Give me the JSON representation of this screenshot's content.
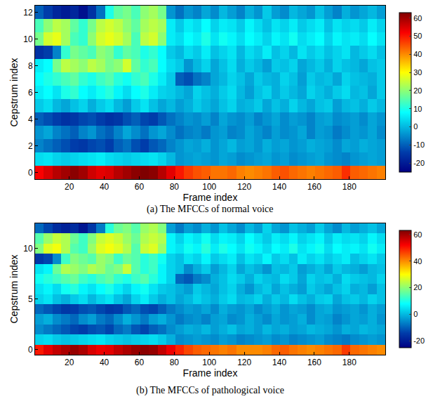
{
  "chart_data": [
    {
      "type": "heatmap",
      "title": "(a) The MFCCs of normal voice",
      "x_label": "Frame index",
      "y_label": "Cepstrum index",
      "color": "Jet",
      "x": [
        3,
        8,
        13,
        18,
        23,
        28,
        33,
        38,
        43,
        48,
        53,
        58,
        63,
        68,
        73,
        78,
        83,
        88,
        93,
        98,
        103,
        108,
        113,
        118,
        123,
        128,
        133,
        138,
        143,
        148,
        153,
        158,
        163,
        168,
        173,
        178,
        183,
        188,
        193,
        198
      ],
      "y": [
        0,
        1,
        2,
        3,
        4,
        5,
        6,
        7,
        8,
        9,
        10,
        11,
        12
      ],
      "z": [
        [
          52,
          55,
          58,
          60,
          62,
          60,
          56,
          54,
          55,
          58,
          60,
          62,
          63,
          62,
          58,
          54,
          50,
          47,
          45,
          44,
          42,
          42,
          43,
          41,
          40,
          41,
          42,
          44,
          45,
          43,
          42,
          41,
          42,
          43,
          44,
          48,
          44,
          43,
          42,
          41
        ],
        [
          4,
          5,
          3,
          2,
          3,
          4,
          5,
          6,
          4,
          3,
          2,
          3,
          4,
          5,
          3,
          0,
          -4,
          -3,
          -2,
          -3,
          -4,
          -2,
          -3,
          -5,
          -4,
          -3,
          -2,
          -4,
          -3,
          -5,
          -4,
          -3,
          -2,
          -4,
          -5,
          -6,
          -4,
          -3,
          -2,
          -3
        ],
        [
          -6,
          -8,
          -10,
          -12,
          -14,
          -15,
          -13,
          -12,
          -14,
          -10,
          -8,
          -12,
          -14,
          -11,
          -9,
          -6,
          -4,
          -2,
          -3,
          -1,
          -4,
          -2,
          0,
          -3,
          -2,
          -4,
          -1,
          -3,
          -2,
          -4,
          -3,
          -1,
          -2,
          -3,
          -5,
          -2,
          -3,
          -1,
          -2,
          -3
        ],
        [
          -4,
          -2,
          -6,
          -8,
          -10,
          -6,
          -4,
          -8,
          -10,
          -6,
          -2,
          -5,
          -8,
          -4,
          -2,
          -5,
          -8,
          -6,
          -5,
          -7,
          -4,
          -3,
          -6,
          -5,
          -2,
          -4,
          -6,
          -3,
          -5,
          -4,
          -2,
          -6,
          -3,
          -4,
          -7,
          -5,
          -3,
          -4,
          -2,
          -5
        ],
        [
          -10,
          -12,
          -14,
          -16,
          -15,
          -13,
          -12,
          -14,
          -16,
          -15,
          -12,
          -10,
          -13,
          -14,
          -11,
          -8,
          -6,
          -4,
          -5,
          -3,
          -6,
          -2,
          -4,
          -5,
          -3,
          -6,
          -4,
          -2,
          -5,
          -3,
          -4,
          -6,
          -3,
          -2,
          -5,
          -4,
          -3,
          -5,
          -2,
          -4
        ],
        [
          2,
          4,
          0,
          -2,
          1,
          3,
          -1,
          2,
          4,
          0,
          -3,
          2,
          5,
          1,
          -2,
          0,
          -3,
          -1,
          2,
          0,
          -2,
          1,
          3,
          -1,
          0,
          2,
          -2,
          1,
          -1,
          3,
          0,
          -2,
          1,
          2,
          -3,
          0,
          1,
          -1,
          2,
          0
        ],
        [
          6,
          8,
          5,
          10,
          12,
          8,
          6,
          9,
          11,
          7,
          4,
          8,
          10,
          6,
          3,
          2,
          0,
          -2,
          3,
          1,
          -1,
          2,
          4,
          0,
          -3,
          1,
          3,
          -1,
          2,
          0,
          -2,
          3,
          1,
          -1,
          2,
          4,
          0,
          1,
          -2,
          2
        ],
        [
          8,
          10,
          12,
          14,
          16,
          12,
          10,
          13,
          15,
          11,
          9,
          12,
          14,
          10,
          6,
          2,
          -10,
          -12,
          -8,
          -6,
          -2,
          0,
          3,
          1,
          -2,
          2,
          0,
          -1,
          3,
          1,
          -3,
          2,
          0,
          1,
          -2,
          3,
          1,
          0,
          -1,
          2
        ],
        [
          6,
          8,
          18,
          24,
          22,
          20,
          24,
          22,
          18,
          20,
          26,
          16,
          12,
          14,
          8,
          4,
          2,
          -4,
          0,
          3,
          -2,
          1,
          4,
          -1,
          2,
          0,
          -3,
          2,
          1,
          3,
          -2,
          0,
          2,
          -1,
          3,
          1,
          0,
          -2,
          1,
          2
        ],
        [
          -16,
          -14,
          -6,
          12,
          18,
          16,
          14,
          20,
          18,
          12,
          16,
          14,
          10,
          12,
          8,
          2,
          0,
          4,
          2,
          6,
          1,
          3,
          5,
          0,
          4,
          2,
          6,
          1,
          3,
          0,
          5,
          2,
          4,
          1,
          3,
          5,
          0,
          2,
          4,
          1
        ],
        [
          18,
          26,
          28,
          22,
          14,
          12,
          20,
          26,
          28,
          26,
          22,
          14,
          24,
          26,
          20,
          6,
          4,
          8,
          6,
          10,
          5,
          9,
          7,
          4,
          8,
          6,
          3,
          7,
          5,
          9,
          4,
          6,
          8,
          3,
          7,
          5,
          6,
          4,
          8,
          5
        ],
        [
          14,
          20,
          24,
          22,
          16,
          12,
          18,
          24,
          26,
          24,
          20,
          16,
          22,
          24,
          22,
          6,
          2,
          6,
          4,
          8,
          3,
          6,
          5,
          2,
          7,
          4,
          1,
          5,
          3,
          6,
          2,
          4,
          6,
          1,
          5,
          3,
          4,
          2,
          6,
          3
        ],
        [
          -10,
          -14,
          -18,
          -20,
          -18,
          -22,
          -16,
          -8,
          10,
          16,
          18,
          14,
          20,
          22,
          18,
          -4,
          -8,
          -4,
          -6,
          -2,
          -5,
          0,
          -3,
          -6,
          -1,
          -4,
          2,
          -3,
          -5,
          0,
          -2,
          -4,
          1,
          -3,
          -6,
          -1,
          -4,
          -2,
          0,
          -3
        ]
      ],
      "xlim": [
        0.5,
        200.5
      ],
      "xticks": [
        20,
        40,
        60,
        80,
        100,
        120,
        140,
        160,
        180
      ],
      "ylim": [
        -0.5,
        12.5
      ],
      "yticks": [
        0,
        2,
        4,
        6,
        8,
        10,
        12
      ],
      "zlim": [
        -25,
        63
      ],
      "zticks": [
        -20,
        -10,
        0,
        10,
        20,
        30,
        40,
        50,
        60
      ]
    },
    {
      "type": "heatmap",
      "title": "(b) The MFCCs of pathological voice",
      "x_label": "Frame index",
      "y_label": "Cepstrum index",
      "color": "Jet",
      "x": [
        3,
        8,
        13,
        18,
        23,
        28,
        33,
        38,
        43,
        48,
        53,
        58,
        63,
        68,
        73,
        78,
        83,
        88,
        93,
        98,
        103,
        108,
        113,
        118,
        123,
        128,
        133,
        138,
        143,
        148,
        153,
        158,
        163,
        168,
        173,
        178,
        183,
        188,
        193,
        198
      ],
      "y": [
        0,
        1,
        2,
        3,
        4,
        5,
        6,
        7,
        8,
        9,
        10,
        11,
        12
      ],
      "z": [
        [
          50,
          54,
          57,
          59,
          61,
          59,
          55,
          53,
          54,
          57,
          59,
          61,
          62,
          61,
          57,
          53,
          49,
          46,
          44,
          43,
          42,
          41,
          42,
          40,
          40,
          40,
          41,
          43,
          44,
          42,
          41,
          40,
          41,
          42,
          43,
          47,
          43,
          42,
          41,
          40
        ],
        [
          3,
          4,
          2,
          1,
          2,
          3,
          4,
          5,
          3,
          2,
          1,
          2,
          3,
          4,
          2,
          -1,
          -5,
          -4,
          -3,
          -4,
          -5,
          -3,
          -4,
          -6,
          -5,
          -4,
          -3,
          -5,
          -4,
          -6,
          -5,
          -4,
          -3,
          -5,
          -6,
          -7,
          -5,
          -4,
          -3,
          -4
        ],
        [
          -5,
          -7,
          -9,
          -11,
          -13,
          -14,
          -12,
          -11,
          -13,
          -9,
          -7,
          -11,
          -13,
          -10,
          -8,
          -5,
          -3,
          -1,
          -2,
          0,
          -3,
          -1,
          1,
          -2,
          -1,
          -3,
          0,
          -2,
          -1,
          -3,
          -2,
          0,
          -1,
          -2,
          -4,
          -1,
          -2,
          0,
          -1,
          -2
        ],
        [
          -3,
          -1,
          -5,
          -7,
          -9,
          -5,
          -3,
          -7,
          -9,
          -5,
          -1,
          -4,
          -7,
          -3,
          -1,
          -4,
          -7,
          -5,
          -4,
          -6,
          -3,
          -2,
          -5,
          -4,
          -1,
          -3,
          -5,
          -2,
          -4,
          -3,
          -1,
          -5,
          -2,
          -3,
          -6,
          -4,
          -2,
          -3,
          -1,
          -4
        ],
        [
          -9,
          -11,
          -13,
          -15,
          -14,
          -12,
          -11,
          -13,
          -15,
          -14,
          -11,
          -9,
          -12,
          -13,
          -10,
          -7,
          -5,
          -3,
          -4,
          -2,
          -5,
          -1,
          -3,
          -4,
          -2,
          -5,
          -3,
          -1,
          -4,
          -2,
          -3,
          -5,
          -2,
          -1,
          -4,
          -3,
          -2,
          -4,
          -1,
          -3
        ],
        [
          3,
          5,
          1,
          -1,
          2,
          4,
          0,
          3,
          5,
          1,
          -2,
          3,
          6,
          2,
          -1,
          1,
          -2,
          0,
          3,
          1,
          -1,
          2,
          4,
          0,
          1,
          3,
          -1,
          2,
          0,
          4,
          1,
          -1,
          2,
          3,
          -2,
          1,
          2,
          0,
          3,
          1
        ],
        [
          5,
          7,
          4,
          9,
          11,
          7,
          5,
          8,
          10,
          6,
          3,
          7,
          9,
          5,
          2,
          1,
          -1,
          -3,
          2,
          0,
          -2,
          1,
          3,
          -1,
          -4,
          0,
          2,
          -2,
          1,
          -1,
          -3,
          2,
          0,
          -2,
          1,
          3,
          -1,
          0,
          -3,
          1
        ],
        [
          9,
          11,
          13,
          15,
          17,
          13,
          11,
          14,
          16,
          12,
          10,
          13,
          15,
          11,
          7,
          3,
          -9,
          -11,
          -7,
          -5,
          -1,
          1,
          4,
          2,
          -1,
          3,
          1,
          0,
          4,
          2,
          -2,
          3,
          1,
          2,
          -1,
          4,
          2,
          1,
          0,
          3
        ],
        [
          5,
          7,
          17,
          23,
          21,
          19,
          23,
          21,
          17,
          19,
          25,
          15,
          11,
          13,
          7,
          3,
          1,
          -5,
          -1,
          2,
          -3,
          0,
          3,
          -2,
          1,
          -1,
          -4,
          1,
          0,
          2,
          -3,
          -1,
          1,
          -2,
          2,
          0,
          -1,
          -3,
          0,
          1
        ],
        [
          -15,
          -13,
          -5,
          13,
          19,
          17,
          15,
          21,
          19,
          13,
          17,
          15,
          11,
          13,
          9,
          3,
          1,
          5,
          3,
          7,
          2,
          4,
          6,
          1,
          5,
          3,
          7,
          2,
          4,
          1,
          6,
          3,
          5,
          2,
          4,
          6,
          1,
          3,
          5,
          2
        ],
        [
          19,
          27,
          29,
          23,
          15,
          13,
          21,
          27,
          29,
          27,
          23,
          15,
          25,
          27,
          21,
          7,
          5,
          9,
          7,
          11,
          6,
          10,
          8,
          5,
          9,
          7,
          4,
          8,
          6,
          10,
          5,
          7,
          9,
          4,
          8,
          6,
          7,
          5,
          9,
          6
        ],
        [
          15,
          21,
          25,
          23,
          17,
          13,
          19,
          25,
          27,
          25,
          21,
          17,
          23,
          25,
          23,
          7,
          3,
          7,
          5,
          9,
          4,
          7,
          6,
          3,
          8,
          5,
          2,
          6,
          4,
          7,
          3,
          5,
          7,
          2,
          6,
          4,
          5,
          3,
          7,
          4
        ],
        [
          -9,
          -13,
          -17,
          -19,
          -17,
          -21,
          -15,
          -7,
          11,
          17,
          19,
          15,
          21,
          23,
          19,
          -3,
          -7,
          -3,
          -5,
          -1,
          -4,
          1,
          -2,
          -5,
          0,
          -3,
          3,
          -2,
          -4,
          1,
          -1,
          -3,
          2,
          -2,
          -5,
          0,
          -3,
          -1,
          1,
          -2
        ]
      ],
      "xlim": [
        0.5,
        200.5
      ],
      "xticks": [
        20,
        40,
        60,
        80,
        100,
        120,
        140,
        160,
        180
      ],
      "ylim": [
        -0.5,
        12.5
      ],
      "yticks": [
        0,
        5,
        10
      ],
      "zlim": [
        -25,
        63
      ],
      "zticks": [
        -20,
        0,
        20,
        40,
        60
      ]
    }
  ]
}
